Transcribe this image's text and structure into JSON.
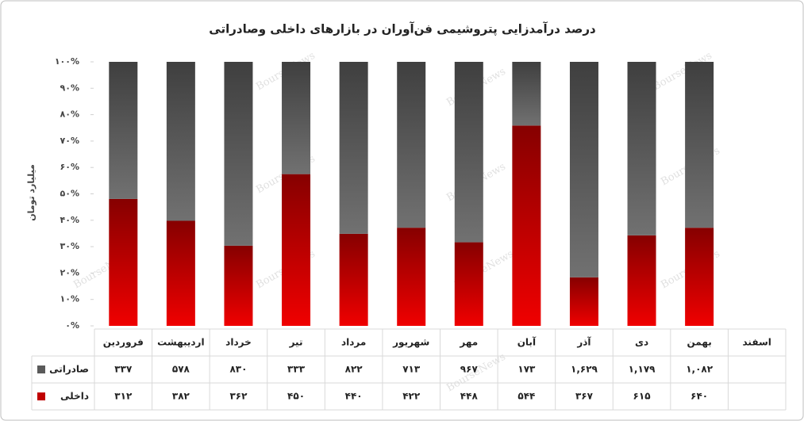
{
  "chart_data": {
    "type": "bar",
    "stack": "percent",
    "title": "درصد درآمدزایی پتروشیمی فن‌آوران در بازارهای داخلی وصادراتی",
    "y_label": "میلیارد تومان",
    "watermark": "BourseNews",
    "categories": [
      "فروردین",
      "اردیبهشت",
      "خرداد",
      "تیر",
      "مرداد",
      "شهریور",
      "مهر",
      "آبان",
      "آذر",
      "دی",
      "بهمن",
      "اسفند"
    ],
    "series": [
      {
        "name": "صادراتی",
        "color": "#5a5a5a",
        "values": [
          337,
          578,
          830,
          333,
          822,
          713,
          967,
          173,
          1629,
          1179,
          1082,
          null
        ],
        "value_labels": [
          "۳۳۷",
          "۵۷۸",
          "۸۳۰",
          "۳۳۳",
          "۸۲۲",
          "۷۱۳",
          "۹۶۷",
          "۱۷۳",
          "۱,۶۲۹",
          "۱,۱۷۹",
          "۱,۰۸۲",
          null
        ]
      },
      {
        "name": "داخلی",
        "color": "#c00000",
        "values": [
          312,
          382,
          362,
          450,
          440,
          422,
          448,
          544,
          367,
          615,
          640,
          null
        ],
        "value_labels": [
          "۳۱۲",
          "۳۸۲",
          "۳۶۲",
          "۴۵۰",
          "۴۴۰",
          "۴۲۲",
          "۴۴۸",
          "۵۴۴",
          "۳۶۷",
          "۶۱۵",
          "۶۴۰",
          null
        ]
      }
    ],
    "ylim": [
      0,
      100
    ],
    "yticks": [
      {
        "value": 0,
        "label": "۰%"
      },
      {
        "value": 10,
        "label": "۱۰%"
      },
      {
        "value": 20,
        "label": "۲۰%"
      },
      {
        "value": 30,
        "label": "۳۰%"
      },
      {
        "value": 40,
        "label": "۴۰%"
      },
      {
        "value": 50,
        "label": "۵۰%"
      },
      {
        "value": 60,
        "label": "۶۰%"
      },
      {
        "value": 70,
        "label": "۷۰%"
      },
      {
        "value": 80,
        "label": "۸۰%"
      },
      {
        "value": 90,
        "label": "۹۰%"
      },
      {
        "value": 100,
        "label": "۱۰۰%"
      }
    ],
    "grid": false
  }
}
